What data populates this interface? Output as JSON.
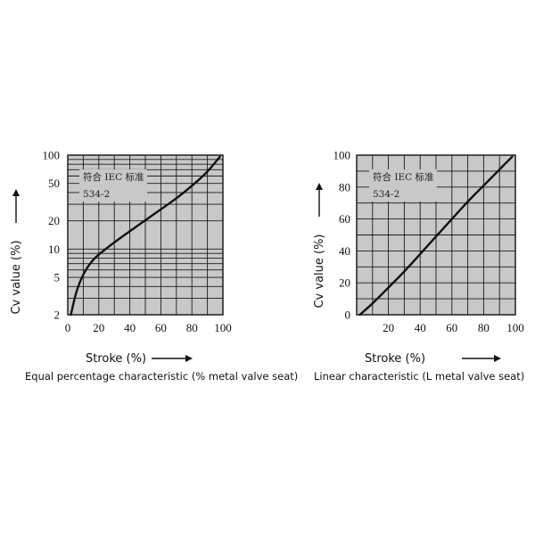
{
  "chart_data": [
    {
      "type": "line",
      "caption": "Equal percentage characteristic (% metal valve seat)",
      "xlabel": "Stroke (%)",
      "ylabel": "Cv value (%)",
      "y_scale": "log",
      "xlim": [
        0,
        100
      ],
      "ylim": [
        2,
        100
      ],
      "x_ticks": [
        "0",
        "20",
        "40",
        "60",
        "80",
        "100"
      ],
      "y_ticks": [
        "2",
        "5",
        "10",
        "20",
        "50",
        "100"
      ],
      "annotation": [
        "符合 IEC 标准",
        "534-2"
      ],
      "grid": true,
      "line_color": "#111111",
      "plot_bg": "#c8c8c8",
      "series": [
        {
          "x": [
            2,
            5,
            8,
            12,
            16,
            20,
            30,
            40,
            50,
            60,
            70,
            80,
            90,
            98
          ],
          "y": [
            2,
            3.3,
            4.6,
            6.2,
            7.6,
            8.8,
            11.8,
            15.5,
            20.3,
            26.5,
            34.5,
            47,
            66,
            96
          ]
        }
      ]
    },
    {
      "type": "line",
      "caption": "Linear characteristic (L metal valve seat)",
      "xlabel": "Stroke (%)",
      "ylabel": "Cv value (%)",
      "y_scale": "linear",
      "xlim": [
        0,
        100
      ],
      "ylim": [
        0,
        100
      ],
      "x_ticks": [
        "20",
        "40",
        "60",
        "80",
        "100"
      ],
      "y_ticks": [
        "0",
        "20",
        "40",
        "60",
        "80",
        "100"
      ],
      "annotation": [
        "符合 IEC 标准",
        "534-2"
      ],
      "grid": true,
      "line_color": "#111111",
      "plot_bg": "#c8c8c8",
      "series": [
        {
          "x": [
            2,
            10,
            20,
            30,
            40,
            50,
            60,
            70,
            80,
            90,
            98
          ],
          "y": [
            0,
            7,
            17,
            27,
            38,
            49,
            60,
            71,
            81,
            91,
            99
          ]
        }
      ]
    }
  ]
}
